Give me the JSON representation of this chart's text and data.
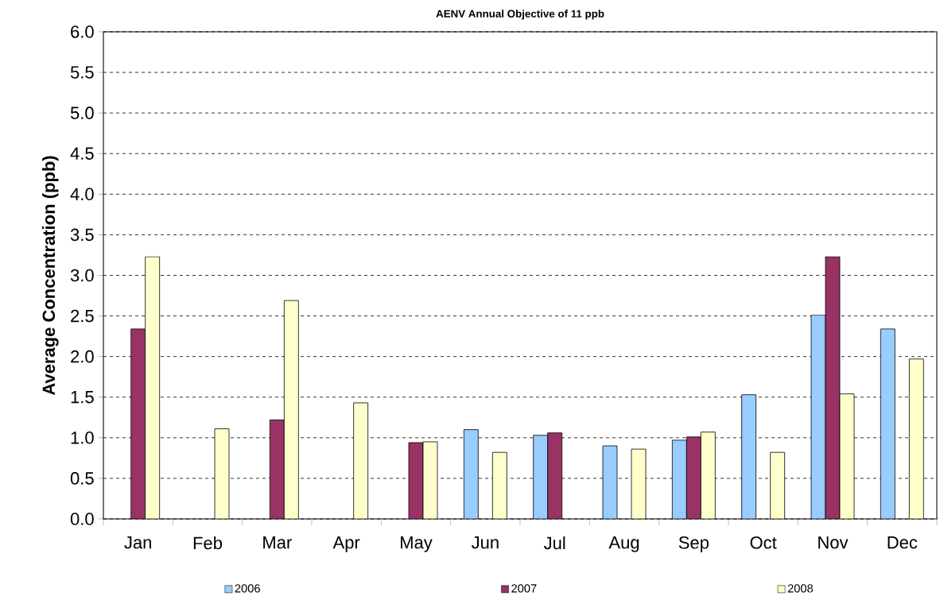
{
  "chart_data": {
    "type": "bar",
    "title": "AENV Annual Objective of 11 ppb",
    "ylabel": "Average Concentration (ppb)",
    "categories": [
      "Jan",
      "Feb",
      "Mar",
      "Apr",
      "May",
      "Jun",
      "Jul",
      "Aug",
      "Sep",
      "Oct",
      "Nov",
      "Dec"
    ],
    "series": [
      {
        "name": "2006",
        "color": "#99ccff",
        "values": [
          null,
          null,
          null,
          null,
          null,
          1.1,
          1.03,
          0.9,
          0.97,
          1.53,
          2.51,
          2.34
        ]
      },
      {
        "name": "2007",
        "color": "#993366",
        "values": [
          2.34,
          null,
          1.22,
          null,
          0.94,
          null,
          1.06,
          null,
          1.01,
          null,
          3.23,
          null
        ]
      },
      {
        "name": "2008",
        "color": "#ffffcc",
        "values": [
          3.23,
          1.11,
          2.69,
          1.43,
          0.95,
          0.82,
          null,
          0.86,
          1.07,
          0.82,
          1.54,
          1.97
        ]
      }
    ],
    "ylim": [
      0,
      6
    ],
    "yticks": [
      {
        "value": 0,
        "label": "0.0"
      },
      {
        "value": 0.5,
        "label": "0.5"
      },
      {
        "value": 1,
        "label": "1.0"
      },
      {
        "value": 1.5,
        "label": "1.5"
      },
      {
        "value": 2,
        "label": "2.0"
      },
      {
        "value": 2.5,
        "label": "2.5"
      },
      {
        "value": 3,
        "label": "3.0"
      },
      {
        "value": 3.5,
        "label": "3.5"
      },
      {
        "value": 4,
        "label": "4.0"
      },
      {
        "value": 4.5,
        "label": "4.5"
      },
      {
        "value": 5,
        "label": "5.0"
      },
      {
        "value": 5.5,
        "label": "5.5"
      },
      {
        "value": 6,
        "label": "6.0"
      }
    ],
    "grid": "y",
    "legend": "bottom"
  }
}
